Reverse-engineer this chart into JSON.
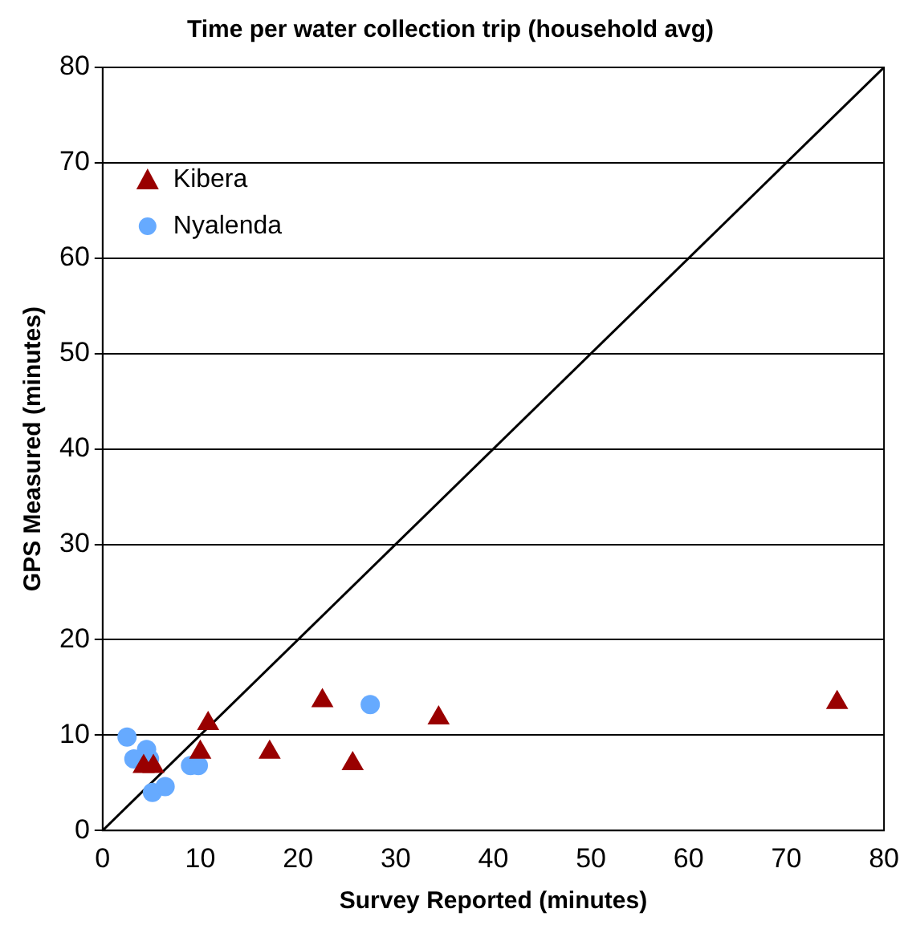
{
  "chart_data": {
    "type": "scatter",
    "title": "Time per water collection trip (household avg)",
    "xlabel": "Survey Reported (minutes)",
    "ylabel": "GPS Measured (minutes)",
    "xlim": [
      0,
      80
    ],
    "ylim": [
      0,
      80
    ],
    "xticks": [
      0,
      10,
      20,
      30,
      40,
      50,
      60,
      70,
      80
    ],
    "yticks": [
      0,
      10,
      20,
      30,
      40,
      50,
      60,
      70,
      80
    ],
    "grid": "y",
    "legend": "top left",
    "series": [
      {
        "name": "Kibera",
        "color": "#990000",
        "marker": "triangle",
        "x": [
          4.2,
          5.2,
          10.8,
          10.0,
          17.1,
          22.5,
          25.6,
          34.4,
          75.2
        ],
        "values": [
          6.7,
          6.7,
          11.2,
          8.2,
          8.2,
          13.6,
          7.0,
          11.8,
          13.4
        ]
      },
      {
        "name": "Nyalenda",
        "color": "#66aaff",
        "marker": "circle",
        "x": [
          2.5,
          4.5,
          3.2,
          4.8,
          5.1,
          6.4,
          9.0,
          9.8,
          27.4
        ],
        "values": [
          9.8,
          8.5,
          7.5,
          7.5,
          4.0,
          4.6,
          6.8,
          6.8,
          13.2
        ]
      },
      {
        "type": "line",
        "color": "#000000",
        "marker": "none",
        "x": [
          0,
          80
        ],
        "values": [
          0,
          80
        ]
      }
    ]
  }
}
